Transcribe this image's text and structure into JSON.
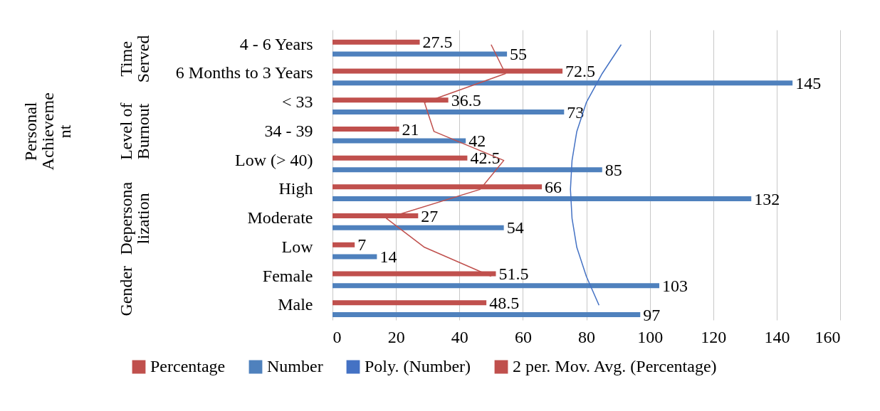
{
  "chart_data": {
    "type": "bar",
    "orientation": "horizontal",
    "categories": [
      "4 - 6 Years",
      "6 Months to 3 Years",
      "< 33",
      "34 - 39",
      "Low (> 40)",
      "High",
      "Moderate",
      "Low",
      "Female",
      "Male"
    ],
    "series": [
      {
        "name": "Percentage",
        "color": "#c0504d",
        "values": [
          27.5,
          72.5,
          36.5,
          21,
          42.5,
          66,
          27,
          7,
          51.5,
          48.5
        ],
        "value_labels": [
          "27.5",
          "72.5",
          "36.5",
          "21",
          "42.5",
          "66",
          "27",
          "7",
          "51.5",
          "48.5"
        ]
      },
      {
        "name": "Number",
        "color": "#4f81bd",
        "values": [
          55,
          145,
          73,
          42,
          85,
          132,
          54,
          14,
          103,
          97
        ],
        "value_labels": [
          "55",
          "145",
          "73",
          "42",
          "85",
          "132",
          "54",
          "14",
          "103",
          "97"
        ]
      },
      {
        "name": "Poly. (Number)",
        "type": "line",
        "color": "#4472c4",
        "values": [
          91,
          85,
          80,
          77,
          75.5,
          75,
          75.5,
          77,
          80,
          84
        ]
      },
      {
        "name": "2 per. Mov. Avg. (Percentage)",
        "type": "line",
        "color": "#c0504d",
        "values": [
          50,
          54.5,
          29,
          32,
          54,
          46.5,
          17,
          29,
          50,
          null
        ]
      }
    ],
    "annotations": [
      "Time Served",
      "Personal Achievement",
      "Level of Burnout",
      "Depersonalization",
      "Gender"
    ],
    "xlim": [
      0,
      160
    ],
    "xticks": [
      0,
      20,
      40,
      60,
      80,
      100,
      120,
      140,
      160
    ],
    "grid": "x",
    "legend": "bottom",
    "marker": "none"
  }
}
